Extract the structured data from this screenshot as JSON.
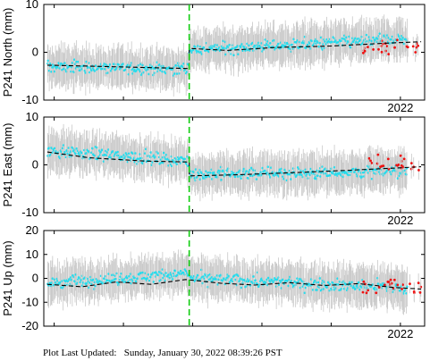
{
  "chart_data": [
    {
      "type": "scatter",
      "station": "P241",
      "ylabel": "P241 North (mm)",
      "ylim": [
        -10,
        10
      ],
      "yticks": [
        "10",
        "0",
        "-10"
      ],
      "x_tick_label": "2022",
      "xlim": [
        2016.85,
        2022.35
      ],
      "offset_line_x": 2018.95,
      "grid": false,
      "series": [
        {
          "role": "daily_solution",
          "color": "#22ddee",
          "x_range": [
            2016.9,
            2022.1
          ],
          "segments": [
            [
              2016.9,
              2018.95,
              -3.0,
              -3.5
            ],
            [
              2018.95,
              2022.1,
              0.5,
              2.8
            ]
          ]
        },
        {
          "role": "recent_solution",
          "color": "#ee1111",
          "x_range": [
            2021.45,
            2022.3
          ],
          "mean": 1.0
        },
        {
          "role": "model_fit",
          "color": "#000000",
          "style": "dashed",
          "x": [
            2016.9,
            2018.95,
            2018.95,
            2019.5,
            2020.2,
            2021.0,
            2021.8,
            2022.3
          ],
          "y": [
            -2.7,
            -3.4,
            0.8,
            0.4,
            1.0,
            1.3,
            1.9,
            2.2
          ]
        }
      ]
    },
    {
      "type": "scatter",
      "station": "P241",
      "ylabel": "P241 East (mm)",
      "ylim": [
        -10,
        10
      ],
      "yticks": [
        "10",
        "0",
        "-10"
      ],
      "x_tick_label": "2022",
      "xlim": [
        2016.85,
        2022.35
      ],
      "offset_line_x": 2018.95,
      "grid": false,
      "series": [
        {
          "role": "daily_solution",
          "color": "#22ddee",
          "x_range": [
            2016.9,
            2022.1
          ],
          "segments": [
            [
              2016.9,
              2018.95,
              3.0,
              0.8
            ],
            [
              2018.95,
              2022.1,
              -2.0,
              -1.3
            ]
          ]
        },
        {
          "role": "recent_solution",
          "color": "#ee1111",
          "x_range": [
            2021.45,
            2022.3
          ],
          "mean": 0.2
        },
        {
          "role": "model_fit",
          "color": "#000000",
          "style": "dashed",
          "x": [
            2016.9,
            2017.5,
            2018.3,
            2018.95,
            2018.95,
            2019.6,
            2020.5,
            2021.3,
            2022.3
          ],
          "y": [
            2.7,
            1.5,
            0.8,
            0.6,
            -2.3,
            -2.1,
            -1.6,
            -1.1,
            -0.4
          ]
        }
      ]
    },
    {
      "type": "scatter",
      "station": "P241",
      "ylabel": "P241 Up (mm)",
      "ylim": [
        -20,
        20
      ],
      "yticks": [
        "20",
        "10",
        "0",
        "-10",
        "-20"
      ],
      "x_tick_label": "2022",
      "xlim": [
        2016.85,
        2022.35
      ],
      "offset_line_x": 2018.95,
      "grid": false,
      "series": [
        {
          "role": "daily_solution",
          "color": "#22ddee",
          "x_range": [
            2016.9,
            2022.1
          ],
          "segments": [
            [
              2016.9,
              2018.95,
              -2.0,
              2.0
            ],
            [
              2018.95,
              2022.1,
              0.0,
              -4.0
            ]
          ]
        },
        {
          "role": "recent_solution",
          "color": "#ee1111",
          "x_range": [
            2021.45,
            2022.3
          ],
          "mean": -3.0
        },
        {
          "role": "model_fit",
          "color": "#000000",
          "style": "dashed",
          "x": [
            2016.9,
            2017.4,
            2017.9,
            2018.4,
            2018.9,
            2019.4,
            2019.9,
            2020.4,
            2020.9,
            2021.4,
            2021.9,
            2022.3
          ],
          "y": [
            -2.5,
            -3.5,
            -1.5,
            -2.5,
            -0.5,
            -2.0,
            -2.8,
            -1.8,
            -3.0,
            -2.2,
            -3.8,
            -4.5
          ]
        }
      ]
    }
  ],
  "footer": {
    "label": "Plot Last Updated:",
    "datetime": "Sunday, January 30, 2022 08:39:26 PST"
  }
}
